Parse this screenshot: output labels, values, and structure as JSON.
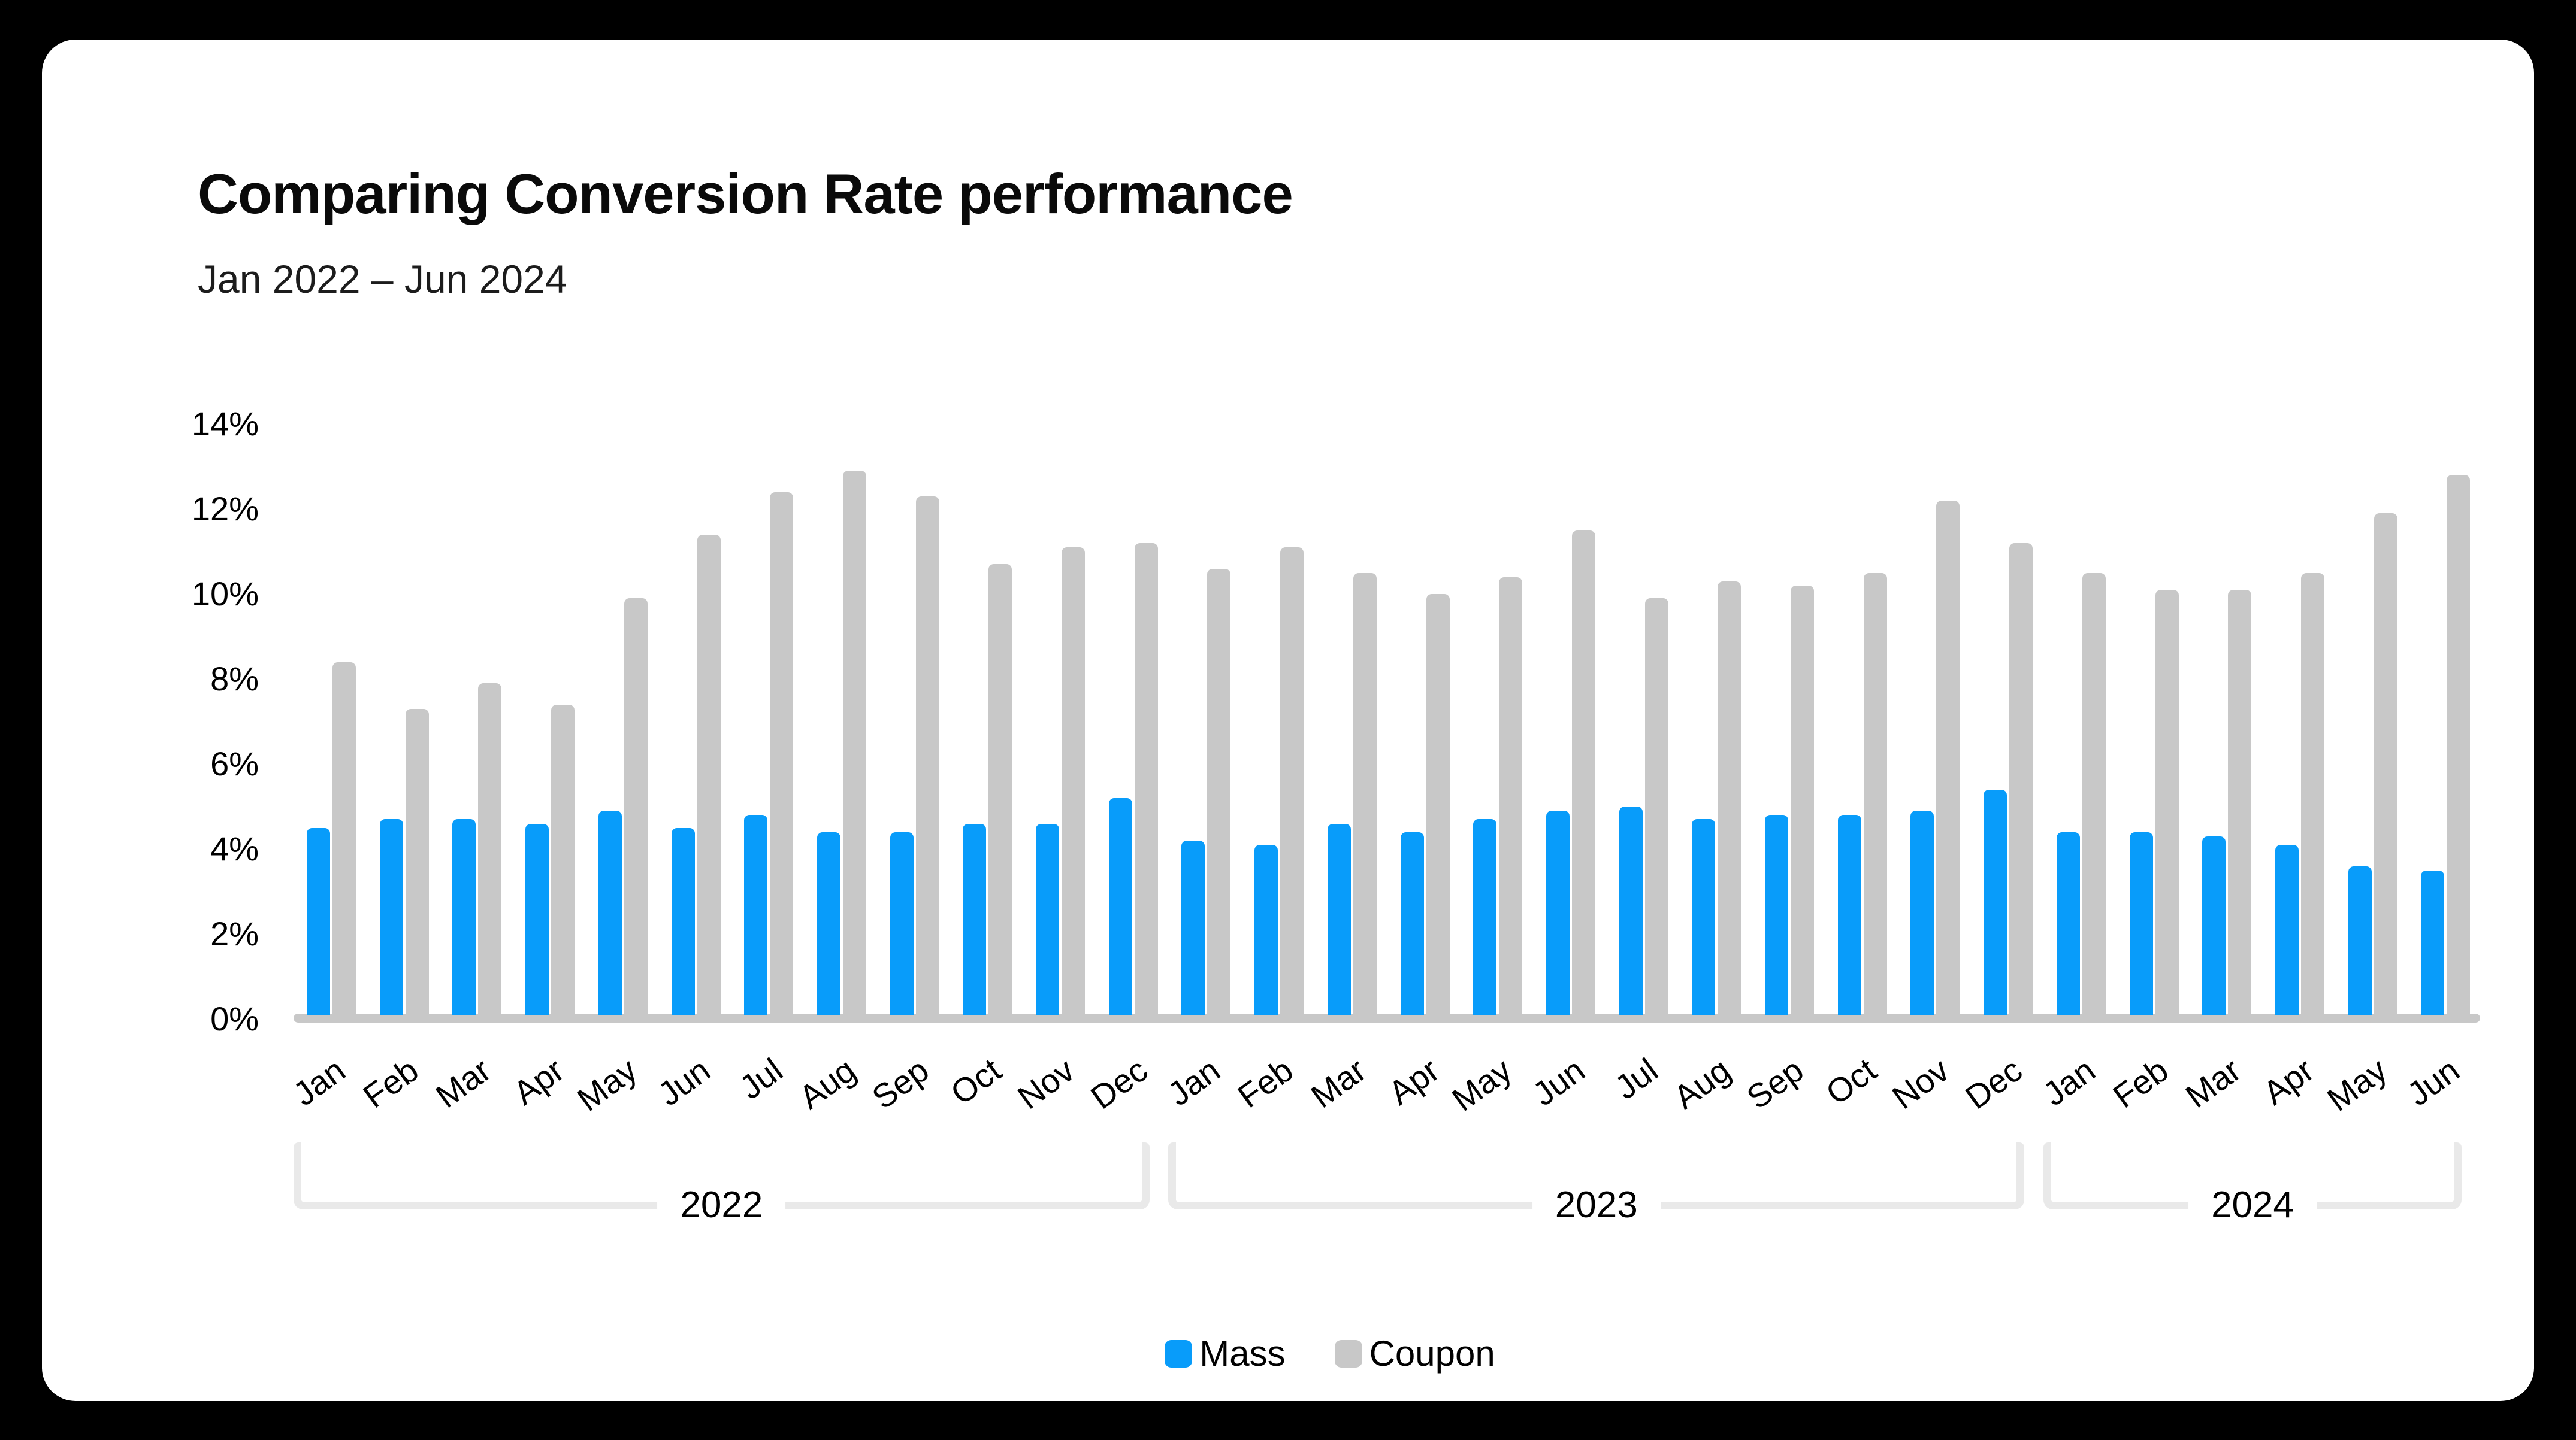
{
  "header": {
    "title": "Comparing Conversion Rate performance",
    "subtitle": "Jan 2022 – Jun 2024"
  },
  "colors": {
    "background": "#000000",
    "card": "#FFFFFF",
    "mass": "#089CFA",
    "coupon": "#C8C8C8",
    "baseline": "#C8C8C8",
    "bracket": "#E9E9E9",
    "text": "#000000"
  },
  "chart_data": {
    "type": "bar",
    "title": "Comparing Conversion Rate performance",
    "subtitle": "Jan 2022 – Jun 2024",
    "unit": "%",
    "ylim": [
      0,
      14
    ],
    "yticks": [
      0,
      2,
      4,
      6,
      8,
      10,
      12,
      14
    ],
    "ytick_labels": [
      "0%",
      "2%",
      "4%",
      "6%",
      "8%",
      "10%",
      "12%",
      "14%"
    ],
    "grid": false,
    "legend_position": "bottom-center",
    "categories": [
      "Jan",
      "Feb",
      "Mar",
      "Apr",
      "May",
      "Jun",
      "Jul",
      "Aug",
      "Sep",
      "Oct",
      "Nov",
      "Dec",
      "Jan",
      "Feb",
      "Mar",
      "Apr",
      "May",
      "Jun",
      "Jul",
      "Aug",
      "Sep",
      "Oct",
      "Nov",
      "Dec",
      "Jan",
      "Feb",
      "Mar",
      "Apr",
      "May",
      "Jun"
    ],
    "year_groups": [
      {
        "label": "2022",
        "start": 0,
        "count": 12
      },
      {
        "label": "2023",
        "start": 12,
        "count": 12
      },
      {
        "label": "2024",
        "start": 24,
        "count": 6
      }
    ],
    "series": [
      {
        "name": "Mass",
        "color": "#089CFA",
        "values": [
          4.4,
          4.6,
          4.6,
          4.5,
          4.8,
          4.4,
          4.7,
          4.3,
          4.3,
          4.5,
          4.5,
          5.1,
          4.1,
          4.0,
          4.5,
          4.3,
          4.6,
          4.8,
          4.9,
          4.6,
          4.7,
          4.7,
          4.8,
          5.3,
          4.3,
          4.3,
          4.2,
          4.0,
          3.5,
          3.4
        ]
      },
      {
        "name": "Coupon",
        "color": "#C8C8C8",
        "values": [
          8.3,
          7.2,
          7.8,
          7.3,
          9.8,
          11.3,
          12.3,
          12.8,
          12.2,
          10.6,
          11.0,
          11.1,
          10.5,
          11.0,
          10.4,
          9.9,
          10.3,
          11.4,
          9.8,
          10.2,
          10.1,
          10.4,
          12.1,
          11.1,
          10.4,
          10.0,
          10.0,
          10.4,
          11.8,
          12.7
        ]
      }
    ]
  }
}
